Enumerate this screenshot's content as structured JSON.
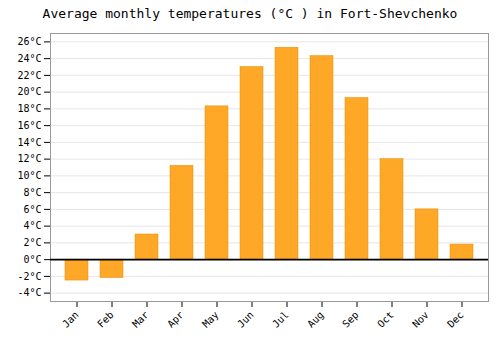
{
  "chart_data": {
    "type": "bar",
    "title": "Average monthly temperatures (°C ) in Fort-Shevchenko",
    "categories": [
      "Jan",
      "Feb",
      "Mar",
      "Apr",
      "May",
      "Jun",
      "Jul",
      "Aug",
      "Sep",
      "Oct",
      "Nov",
      "Dec"
    ],
    "values": [
      -2.5,
      -2.2,
      3.0,
      11.2,
      18.3,
      23.0,
      25.3,
      24.3,
      19.3,
      12.0,
      6.0,
      1.8
    ],
    "color": "#FFA726",
    "ylim": [
      -5,
      27
    ],
    "yticks": [
      {
        "value": -4,
        "label": "-4°C"
      },
      {
        "value": -2,
        "label": "-2°C"
      },
      {
        "value": 0,
        "label": "0°C"
      },
      {
        "value": 2,
        "label": "2°C"
      },
      {
        "value": 4,
        "label": "4°C"
      },
      {
        "value": 6,
        "label": "6°C"
      },
      {
        "value": 8,
        "label": "8°C"
      },
      {
        "value": 10,
        "label": "10°C"
      },
      {
        "value": 12,
        "label": "12°C"
      },
      {
        "value": 14,
        "label": "14°C"
      },
      {
        "value": 16,
        "label": "16°C"
      },
      {
        "value": 18,
        "label": "18°C"
      },
      {
        "value": 20,
        "label": "20°C"
      },
      {
        "value": 22,
        "label": "22°C"
      },
      {
        "value": 24,
        "label": "24°C"
      },
      {
        "value": 26,
        "label": "26°C"
      }
    ],
    "grid": true
  }
}
